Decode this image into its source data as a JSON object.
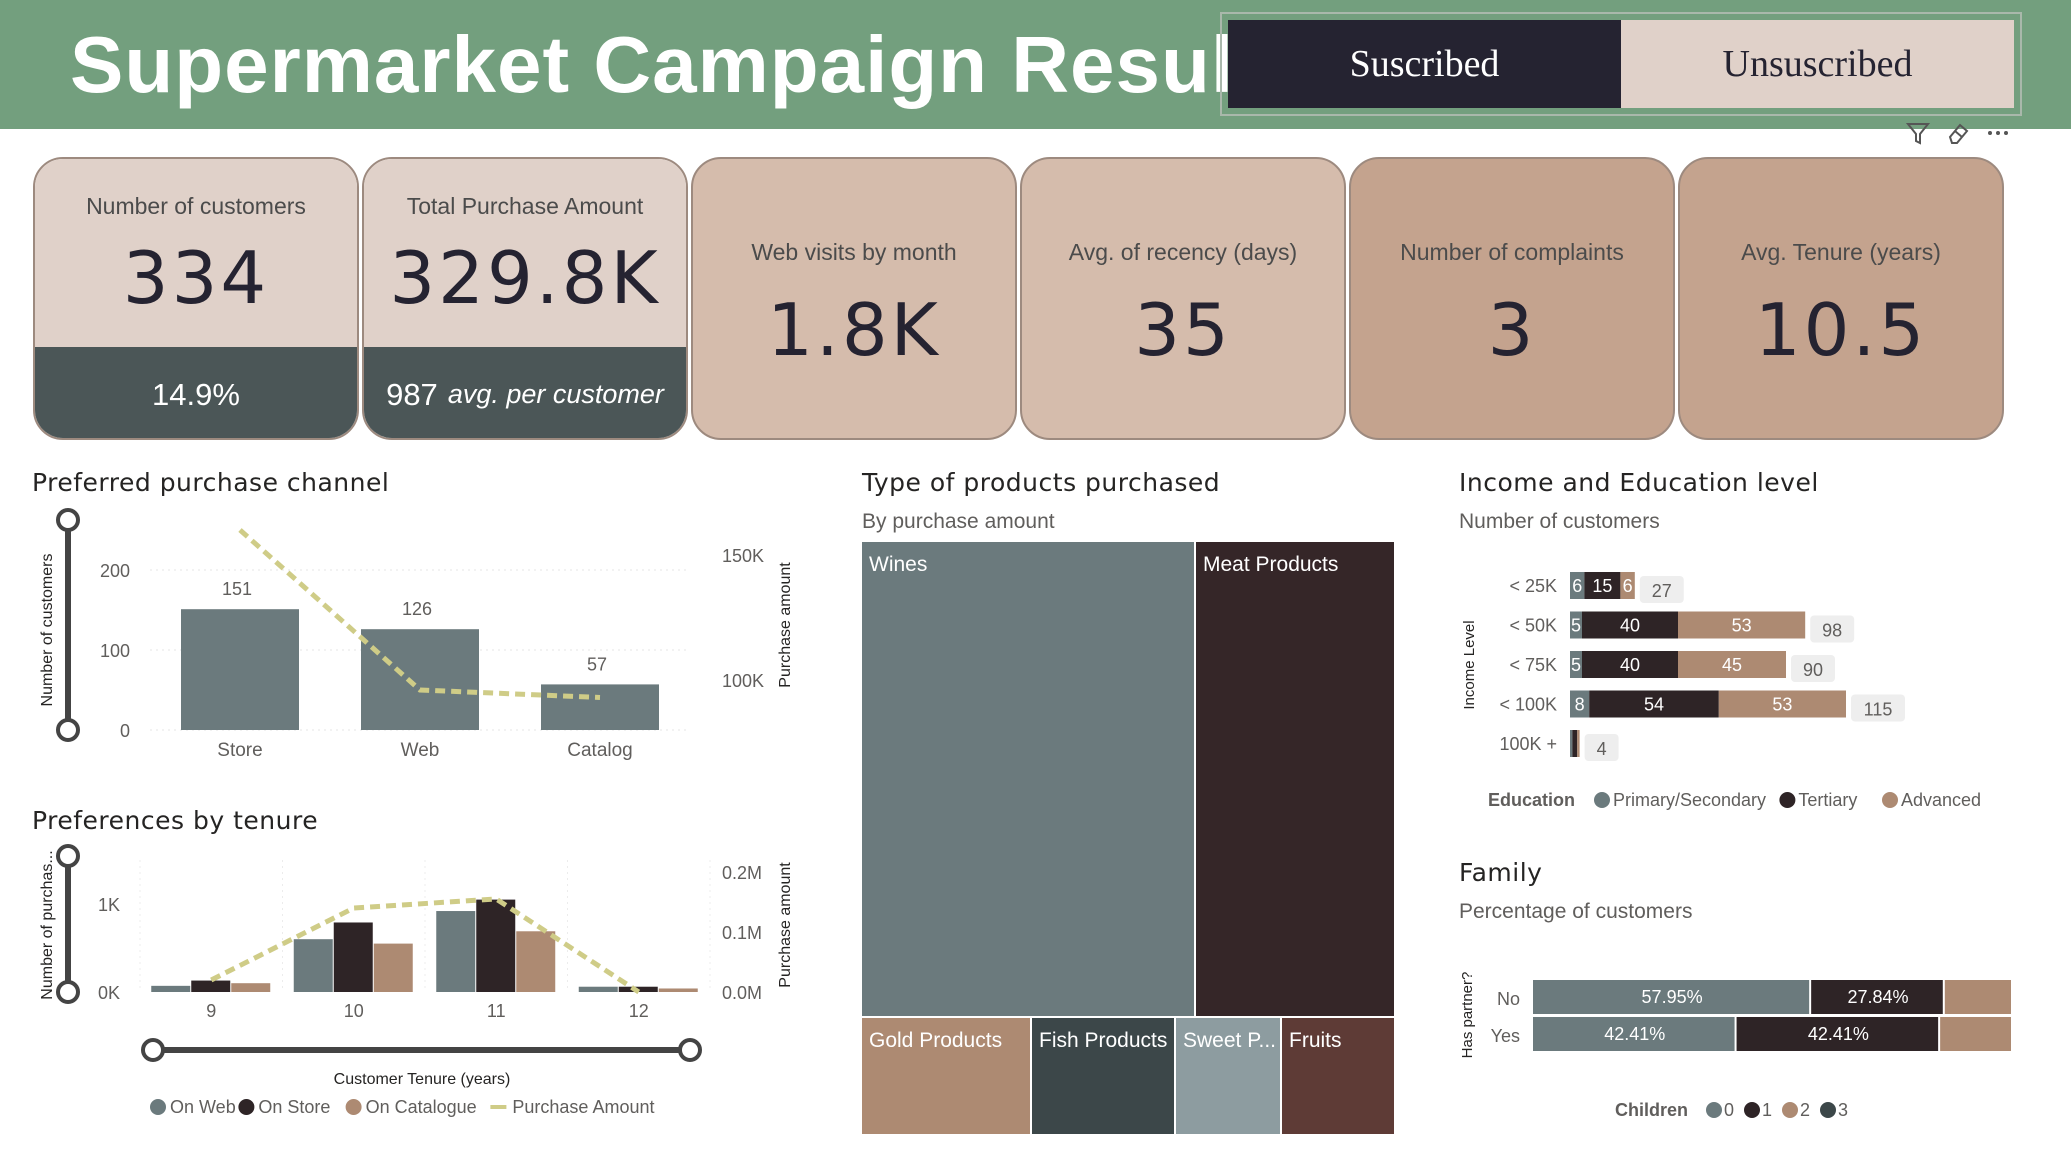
{
  "header": {
    "title": "Supermarket Campaign Results",
    "toggle": [
      {
        "label": "Suscribed",
        "selected": true
      },
      {
        "label": "Unsuscribed",
        "selected": false
      }
    ],
    "tools": [
      "filter-icon",
      "eraser-icon",
      "more-options-icon"
    ]
  },
  "kpis": {
    "customers": {
      "label": "Number of customers",
      "value": "334",
      "sub": "14.9%"
    },
    "purchase": {
      "label": "Total Purchase Amount",
      "value": "329.8K",
      "sub_value": "987",
      "sub_text": "avg. per customer"
    },
    "web": {
      "label": "Web visits by month",
      "value": "1.8K"
    },
    "recency": {
      "label": "Avg. of recency (days)",
      "value": "35"
    },
    "complaints": {
      "label": "Number of complaints",
      "value": "3"
    },
    "tenure": {
      "label": "Avg. Tenure (years)",
      "value": "10.5"
    }
  },
  "channel": {
    "title": "Preferred purchase channel",
    "chart_data": {
      "type": "bar",
      "categories": [
        "Store",
        "Web",
        "Catalog"
      ],
      "values": [
        151,
        126,
        57
      ],
      "line_values": [
        160000,
        96000,
        93000
      ],
      "ylabel": "Number of customers",
      "y2label": "Purchase amount",
      "ylim": [
        0,
        250
      ],
      "y2lim": [
        80000,
        160000
      ],
      "yticks": [
        "200",
        "100",
        "0"
      ],
      "y2ticks": [
        "150K",
        "100K"
      ],
      "colors": {
        "bar": "#6b7a7d",
        "line": "#cfcc87"
      }
    }
  },
  "tenure": {
    "title": "Preferences by tenure",
    "chart_data": {
      "type": "bar",
      "categories": [
        "9",
        "10",
        "11",
        "12"
      ],
      "series": [
        {
          "name": "On Web",
          "values": [
            70,
            600,
            920,
            60
          ],
          "color": "#6b7a7d"
        },
        {
          "name": "On Store",
          "values": [
            130,
            790,
            1050,
            60
          ],
          "color": "#2e2426"
        },
        {
          "name": "On Catalogue",
          "values": [
            100,
            550,
            690,
            40
          ],
          "color": "#ad8a72"
        }
      ],
      "line": {
        "name": "Purchase Amount",
        "values": [
          0.02,
          0.14,
          0.155,
          0.0
        ],
        "color": "#cfcc87"
      },
      "xlabel": "Customer Tenure (years)",
      "ylabel": "Number of purchas...",
      "y2label": "Purchase amount",
      "ylim": [
        0,
        1500
      ],
      "y2lim": [
        0,
        0.22
      ],
      "yticks": [
        "1K",
        "0K"
      ],
      "y2ticks": [
        "0.2M",
        "0.1M",
        "0.0M"
      ]
    }
  },
  "products": {
    "title": "Type of products purchased",
    "subtitle": "By purchase amount",
    "chart_data": {
      "type": "treemap",
      "items": [
        {
          "name": "Wines",
          "color": "#6b7a7d"
        },
        {
          "name": "Meat Products",
          "color": "#352628"
        },
        {
          "name": "Gold Products",
          "color": "#ad8a72"
        },
        {
          "name": "Fish Products",
          "color": "#3c4749"
        },
        {
          "name": "Sweet P...",
          "color": "#8d9ca0"
        },
        {
          "name": "Fruits",
          "color": "#5e3b36"
        }
      ]
    }
  },
  "income": {
    "title": "Income and Education level",
    "subtitle": "Number of customers",
    "ylabel": "Income Level",
    "chart_data": {
      "type": "bar",
      "orientation": "horizontal-stacked",
      "categories": [
        "< 25K",
        "< 50K",
        "< 75K",
        "< 100K",
        "100K +"
      ],
      "series": [
        {
          "name": "Primary/Secondary",
          "values": [
            6,
            5,
            5,
            8,
            1
          ],
          "color": "#6b7a7d"
        },
        {
          "name": "Tertiary",
          "values": [
            15,
            40,
            40,
            54,
            2
          ],
          "color": "#2e2426"
        },
        {
          "name": "Advanced",
          "values": [
            6,
            53,
            45,
            53,
            1
          ],
          "color": "#ad8a72"
        }
      ],
      "totals": [
        "27",
        "98",
        "90",
        "115",
        "4"
      ],
      "legend_title": "Education"
    }
  },
  "family": {
    "title": "Family",
    "subtitle": "Percentage of customers",
    "ylabel": "Has partner?",
    "chart_data": {
      "type": "bar",
      "orientation": "horizontal-stacked-percent",
      "categories": [
        "No",
        "Yes"
      ],
      "series": [
        {
          "name": "0",
          "values": [
            57.95,
            42.41
          ],
          "labels": [
            "57.95%",
            "42.41%"
          ],
          "color": "#6b7a7d"
        },
        {
          "name": "1",
          "values": [
            27.84,
            42.41
          ],
          "labels": [
            "27.84%",
            "42.41%"
          ],
          "color": "#2e2426"
        },
        {
          "name": "2",
          "values": [
            14.21,
            15.18
          ],
          "labels": [
            "",
            ""
          ],
          "color": "#ad8a72"
        },
        {
          "name": "3",
          "values": [
            0,
            0
          ],
          "labels": [
            "",
            ""
          ],
          "color": "#3c4749"
        }
      ],
      "legend_title": "Children"
    }
  }
}
